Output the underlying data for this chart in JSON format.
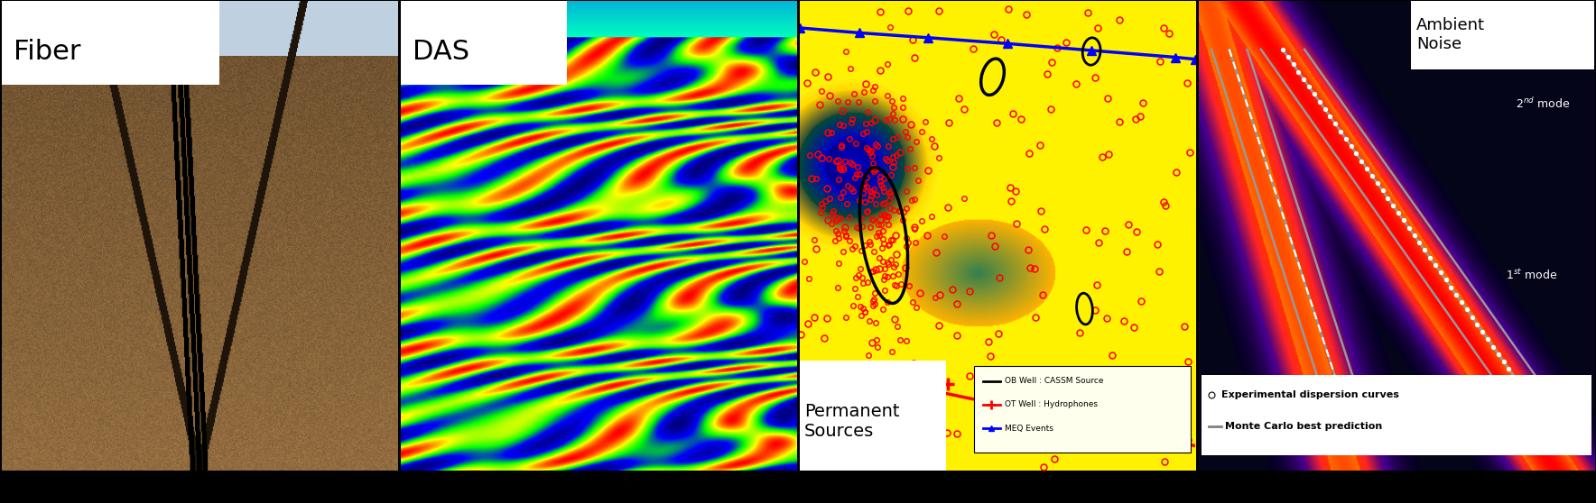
{
  "background_color": "#000000",
  "panel_labels": [
    "Fiber",
    "DAS",
    "Permanent\nSources",
    "Ambient\nNoise"
  ],
  "panel_label_fontsizes": [
    22,
    22,
    14,
    13
  ],
  "legend3_entries": [
    "OB Well : CASSM Source",
    "OT Well : Hydrophones",
    "MEQ Events"
  ],
  "legend4_entries": [
    "Experimental dispersion curves",
    "Monte Carlo best prediction"
  ]
}
